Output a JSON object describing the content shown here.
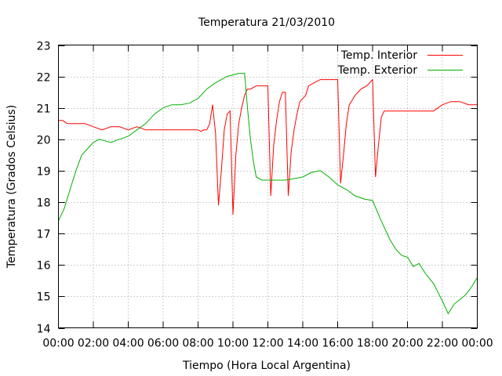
{
  "chart_data": {
    "type": "line",
    "title": "Temperatura 21/03/2010",
    "xlabel": "Tiempo (Hora Local Argentina)",
    "ylabel": "Temperatura (Grados Celsius)",
    "xlim": [
      "00:00",
      "24:00"
    ],
    "ylim": [
      14,
      23
    ],
    "grid": true,
    "legend_position": "top-right",
    "x_tick_labels": [
      "00:00",
      "02:00",
      "04:00",
      "06:00",
      "08:00",
      "10:00",
      "12:00",
      "14:00",
      "16:00",
      "18:00",
      "20:00",
      "22:00",
      "00:00"
    ],
    "y_ticks": [
      14,
      15,
      16,
      17,
      18,
      19,
      20,
      21,
      22,
      23
    ],
    "series": [
      {
        "name": "Temp. Interior",
        "color": "#ff0000",
        "x": [
          "00:00",
          "00:15",
          "00:30",
          "01:00",
          "01:30",
          "02:00",
          "02:30",
          "03:00",
          "03:30",
          "04:00",
          "04:30",
          "05:00",
          "05:30",
          "06:00",
          "06:30",
          "07:00",
          "07:30",
          "08:00",
          "08:10",
          "08:20",
          "08:30",
          "08:40",
          "08:50",
          "09:00",
          "09:10",
          "09:20",
          "09:30",
          "09:40",
          "09:50",
          "10:00",
          "10:10",
          "10:20",
          "10:30",
          "10:40",
          "10:50",
          "11:00",
          "11:20",
          "11:40",
          "12:00",
          "12:10",
          "12:20",
          "12:30",
          "12:40",
          "12:50",
          "13:00",
          "13:10",
          "13:20",
          "13:30",
          "13:40",
          "13:50",
          "14:00",
          "14:10",
          "14:20",
          "14:40",
          "15:00",
          "15:20",
          "15:40",
          "16:00",
          "16:10",
          "16:20",
          "16:30",
          "16:40",
          "17:00",
          "17:20",
          "17:40",
          "18:00",
          "18:10",
          "18:20",
          "18:30",
          "18:40",
          "19:00",
          "19:30",
          "20:00",
          "20:30",
          "21:00",
          "21:30",
          "22:00",
          "22:30",
          "23:00",
          "23:30",
          "24:00"
        ],
        "values": [
          20.6,
          20.6,
          20.5,
          20.5,
          20.5,
          20.4,
          20.3,
          20.4,
          20.4,
          20.3,
          20.4,
          20.3,
          20.3,
          20.3,
          20.3,
          20.3,
          20.3,
          20.3,
          20.25,
          20.3,
          20.3,
          20.5,
          21.1,
          20.2,
          17.9,
          19.0,
          20.3,
          20.8,
          20.9,
          17.6,
          19.5,
          20.5,
          21.0,
          21.4,
          21.6,
          21.6,
          21.7,
          21.7,
          21.7,
          18.2,
          19.8,
          20.6,
          21.2,
          21.5,
          21.5,
          18.2,
          19.6,
          20.3,
          20.8,
          21.2,
          21.3,
          21.4,
          21.7,
          21.8,
          21.9,
          21.9,
          21.9,
          21.9,
          18.6,
          19.5,
          20.5,
          21.1,
          21.4,
          21.6,
          21.7,
          21.9,
          18.8,
          19.8,
          20.7,
          20.9,
          20.9,
          20.9,
          20.9,
          20.9,
          20.9,
          20.9,
          21.1,
          21.2,
          21.2,
          21.1,
          21.1
        ]
      },
      {
        "name": "Temp. Exterior",
        "color": "#00b000",
        "x": [
          "00:00",
          "00:20",
          "00:40",
          "01:00",
          "01:20",
          "01:40",
          "02:00",
          "02:20",
          "02:40",
          "03:00",
          "03:30",
          "04:00",
          "04:30",
          "05:00",
          "05:30",
          "06:00",
          "06:30",
          "07:00",
          "07:30",
          "08:00",
          "08:30",
          "09:00",
          "09:20",
          "09:40",
          "10:00",
          "10:20",
          "10:40",
          "10:50",
          "11:00",
          "11:10",
          "11:20",
          "11:40",
          "12:00",
          "12:30",
          "13:00",
          "13:30",
          "14:00",
          "14:30",
          "15:00",
          "15:30",
          "16:00",
          "16:30",
          "17:00",
          "17:30",
          "18:00",
          "18:30",
          "18:45",
          "19:00",
          "19:20",
          "19:40",
          "20:00",
          "20:20",
          "20:40",
          "21:00",
          "21:30",
          "22:00",
          "22:20",
          "22:40",
          "23:00",
          "23:20",
          "23:40",
          "24:00"
        ],
        "values": [
          17.4,
          17.8,
          18.4,
          19.0,
          19.5,
          19.7,
          19.9,
          20.0,
          19.95,
          19.9,
          20.0,
          20.1,
          20.3,
          20.5,
          20.8,
          21.0,
          21.1,
          21.1,
          21.15,
          21.3,
          21.6,
          21.8,
          21.9,
          22.0,
          22.05,
          22.1,
          22.1,
          21.0,
          20.0,
          19.3,
          18.8,
          18.7,
          18.7,
          18.7,
          18.7,
          18.75,
          18.8,
          18.95,
          19.0,
          18.8,
          18.55,
          18.4,
          18.2,
          18.1,
          18.05,
          17.4,
          17.1,
          16.8,
          16.5,
          16.3,
          16.25,
          15.95,
          16.05,
          15.75,
          15.4,
          14.85,
          14.45,
          14.75,
          14.9,
          15.05,
          15.3,
          15.6
        ]
      }
    ]
  }
}
